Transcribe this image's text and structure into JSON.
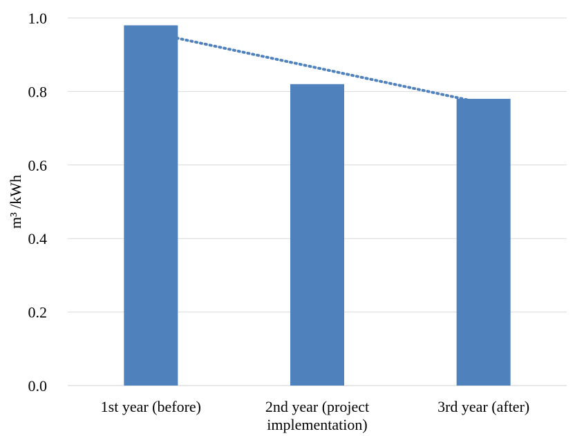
{
  "chart_data": {
    "type": "bar",
    "categories": [
      "1st year (before)",
      "2nd year (project implementation)",
      "3rd year (after)"
    ],
    "category_lines": [
      [
        "1st year (before)"
      ],
      [
        "2nd year (project",
        "implementation)"
      ],
      [
        "3rd year (after)"
      ]
    ],
    "values": [
      0.98,
      0.82,
      0.78
    ],
    "ylabel": "m³ /kWh",
    "ylim": [
      0,
      1.0
    ],
    "yticks": [
      0.0,
      0.2,
      0.4,
      0.6,
      0.8,
      1.0
    ],
    "ytick_labels": [
      "0.0",
      "0.2",
      "0.4",
      "0.6",
      "0.8",
      "1.0"
    ],
    "grid": true,
    "legend": "none",
    "trendline": {
      "style": "dotted",
      "type": "linear"
    },
    "colors": {
      "bar": "#4f81bd",
      "trend": "#4f81bd",
      "grid": "#d9d9d9"
    }
  }
}
